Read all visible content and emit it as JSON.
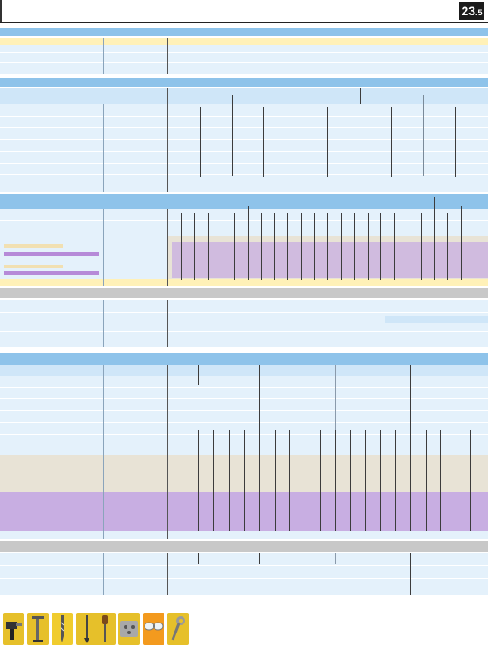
{
  "page": {
    "number_main": "23",
    "number_sub": ".5"
  },
  "colors": {
    "band_blue": "#8ec3ea",
    "band_light": "#cfe6f8",
    "band_pale": "#e4f1fb",
    "band_yellow": "#fff1b8",
    "band_grey": "#c8c8c8",
    "band_beige": "#e8e3d6",
    "band_purple": "#c8aee2"
  },
  "thumbnails": [
    {
      "icon": "power-tool-icon"
    },
    {
      "icon": "lamp-stand-icon"
    },
    {
      "icon": "drill-bit-icon"
    },
    {
      "icon": "chisel-icon"
    },
    {
      "icon": "screwdriver-icon"
    },
    {
      "icon": "tool-case-icon"
    },
    {
      "icon": "safety-glasses-icon"
    },
    {
      "icon": "wrench-icon"
    }
  ]
}
